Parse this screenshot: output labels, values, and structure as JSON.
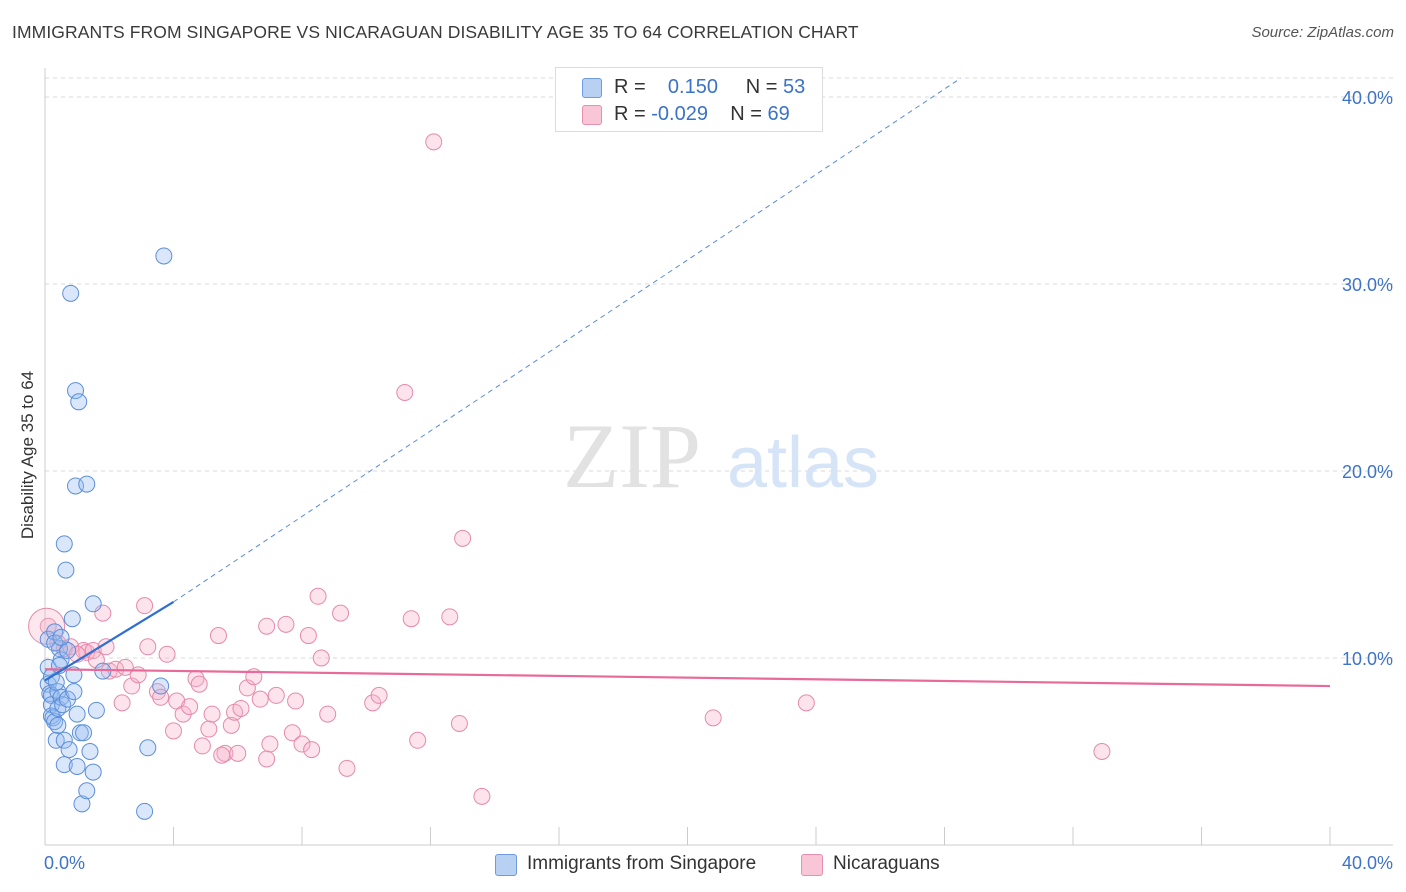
{
  "header": {
    "title": "IMMIGRANTS FROM SINGAPORE VS NICARAGUAN DISABILITY AGE 35 TO 64 CORRELATION CHART",
    "source": "Source: ZipAtlas.com"
  },
  "watermark": {
    "zip": "ZIP",
    "atlas": "atlas"
  },
  "legend": {
    "r_label": "R =",
    "n_label": "N =",
    "series": [
      {
        "name": "Immigrants from Singapore",
        "r": "0.150",
        "n": "53",
        "fill": "#b8d0f2",
        "stroke": "#5a8fd8"
      },
      {
        "name": "Nicaraguans",
        "r": "-0.029",
        "n": "69",
        "fill": "#f8c6d6",
        "stroke": "#e384a6"
      }
    ]
  },
  "colors": {
    "blue_point_fill": "rgba(150,185,240,0.35)",
    "blue_point_stroke": "#5b8fd9",
    "pink_point_fill": "rgba(245,175,200,0.35)",
    "pink_point_stroke": "#e58aab",
    "blue_line": "#2f6fcf",
    "pink_line": "#e86a98",
    "grid": "#d9d9d9",
    "axis_text": "#3d73c9"
  },
  "chart_data": {
    "type": "scatter",
    "title": "IMMIGRANTS FROM SINGAPORE VS NICARAGUAN DISABILITY AGE 35 TO 64 CORRELATION CHART",
    "xlabel": "",
    "ylabel": "Disability Age 35 to 64",
    "xlim": [
      0,
      40
    ],
    "ylim": [
      0,
      40
    ],
    "x_tick_labels": [
      "0.0%",
      "40.0%"
    ],
    "y_tick_labels": [
      "10.0%",
      "20.0%",
      "30.0%",
      "40.0%"
    ],
    "y_ticks": [
      10,
      20,
      30,
      40
    ],
    "series": [
      {
        "name": "Immigrants from Singapore",
        "r": 0.15,
        "n": 53,
        "trend": {
          "x0": 0,
          "y0": 8.8,
          "x1": 4.0,
          "y1": 13.0,
          "dash_to_x": 28.5,
          "dash_to_y": 41
        },
        "points": [
          [
            0.1,
            11.0
          ],
          [
            0.1,
            9.5
          ],
          [
            0.1,
            8.6
          ],
          [
            0.15,
            8.1
          ],
          [
            0.2,
            8.0
          ],
          [
            0.2,
            7.5
          ],
          [
            0.2,
            6.9
          ],
          [
            0.25,
            6.8
          ],
          [
            0.3,
            11.4
          ],
          [
            0.3,
            6.6
          ],
          [
            0.35,
            5.6
          ],
          [
            0.4,
            8.2
          ],
          [
            0.4,
            7.3
          ],
          [
            0.45,
            10.5
          ],
          [
            0.5,
            9.9
          ],
          [
            0.5,
            7.9
          ],
          [
            0.55,
            7.5
          ],
          [
            0.6,
            4.3
          ],
          [
            0.6,
            5.6
          ],
          [
            0.6,
            16.1
          ],
          [
            0.65,
            14.7
          ],
          [
            0.7,
            10.4
          ],
          [
            0.7,
            7.8
          ],
          [
            0.75,
            5.1
          ],
          [
            0.8,
            29.5
          ],
          [
            0.85,
            12.1
          ],
          [
            0.9,
            9.1
          ],
          [
            0.9,
            8.2
          ],
          [
            0.95,
            19.2
          ],
          [
            0.95,
            24.3
          ],
          [
            1.0,
            4.2
          ],
          [
            1.0,
            7.0
          ],
          [
            1.05,
            23.7
          ],
          [
            1.1,
            6.0
          ],
          [
            1.15,
            2.2
          ],
          [
            1.2,
            6.0
          ],
          [
            1.3,
            19.3
          ],
          [
            1.3,
            2.9
          ],
          [
            1.4,
            5.0
          ],
          [
            1.5,
            12.9
          ],
          [
            1.5,
            3.9
          ],
          [
            1.6,
            7.2
          ],
          [
            1.8,
            9.3
          ],
          [
            3.1,
            1.8
          ],
          [
            3.2,
            5.2
          ],
          [
            3.6,
            8.5
          ],
          [
            3.7,
            31.5
          ],
          [
            0.3,
            10.8
          ],
          [
            0.5,
            11.1
          ],
          [
            0.2,
            9.0
          ],
          [
            0.4,
            6.4
          ],
          [
            0.35,
            8.7
          ],
          [
            0.45,
            9.6
          ]
        ]
      },
      {
        "name": "Nicaraguans",
        "r": -0.029,
        "n": 69,
        "trend": {
          "x0": 0,
          "y0": 9.4,
          "x1": 40,
          "y1": 8.5
        },
        "points": [
          [
            0.1,
            11.7
          ],
          [
            0.4,
            10.8
          ],
          [
            0.6,
            10.5
          ],
          [
            0.8,
            10.6
          ],
          [
            1.2,
            10.4
          ],
          [
            1.3,
            10.3
          ],
          [
            1.5,
            10.4
          ],
          [
            1.6,
            9.9
          ],
          [
            1.8,
            12.4
          ],
          [
            1.9,
            10.6
          ],
          [
            2.0,
            9.3
          ],
          [
            2.2,
            9.4
          ],
          [
            2.4,
            7.6
          ],
          [
            2.5,
            9.5
          ],
          [
            2.7,
            8.5
          ],
          [
            2.9,
            9.1
          ],
          [
            3.1,
            12.8
          ],
          [
            3.2,
            10.6
          ],
          [
            3.5,
            8.2
          ],
          [
            3.6,
            7.9
          ],
          [
            3.8,
            10.2
          ],
          [
            4.0,
            6.1
          ],
          [
            4.1,
            7.7
          ],
          [
            4.3,
            7.0
          ],
          [
            4.5,
            7.4
          ],
          [
            4.7,
            8.9
          ],
          [
            4.8,
            8.6
          ],
          [
            4.9,
            5.3
          ],
          [
            5.1,
            6.2
          ],
          [
            5.2,
            7.0
          ],
          [
            5.4,
            11.2
          ],
          [
            5.6,
            4.9
          ],
          [
            5.8,
            6.4
          ],
          [
            5.9,
            7.1
          ],
          [
            6.0,
            4.9
          ],
          [
            6.1,
            7.3
          ],
          [
            6.3,
            8.4
          ],
          [
            6.5,
            9.0
          ],
          [
            6.7,
            7.8
          ],
          [
            6.9,
            11.7
          ],
          [
            7.0,
            5.4
          ],
          [
            7.2,
            8.0
          ],
          [
            7.5,
            11.8
          ],
          [
            7.7,
            6.0
          ],
          [
            7.8,
            7.7
          ],
          [
            8.0,
            5.4
          ],
          [
            8.2,
            11.2
          ],
          [
            8.3,
            5.1
          ],
          [
            8.5,
            13.3
          ],
          [
            8.6,
            10.0
          ],
          [
            8.8,
            7.0
          ],
          [
            9.2,
            12.4
          ],
          [
            9.4,
            4.1
          ],
          [
            10.2,
            7.6
          ],
          [
            10.4,
            8.0
          ],
          [
            11.2,
            24.2
          ],
          [
            11.4,
            12.1
          ],
          [
            11.6,
            5.6
          ],
          [
            12.1,
            37.6
          ],
          [
            12.6,
            12.2
          ],
          [
            12.9,
            6.5
          ],
          [
            13.0,
            16.4
          ],
          [
            13.6,
            2.6
          ],
          [
            6.9,
            4.6
          ],
          [
            5.5,
            4.8
          ],
          [
            20.8,
            6.8
          ],
          [
            23.7,
            7.6
          ],
          [
            32.9,
            5.0
          ],
          [
            1.0,
            10.2
          ]
        ]
      }
    ]
  }
}
